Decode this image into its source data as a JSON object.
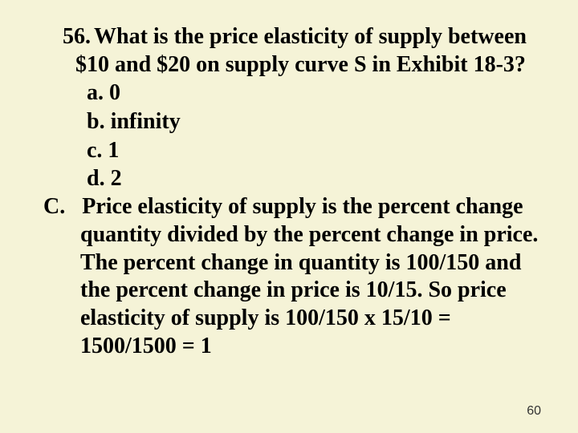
{
  "slide": {
    "background_color": "#f5f3d7",
    "text_color": "#000000",
    "font_family": "Times New Roman",
    "font_size_pt": 21,
    "font_weight": "bold",
    "question": {
      "number": "56.",
      "text": "What is the price elasticity of supply between $10 and $20 on supply curve S in Exhibit 18-3?"
    },
    "options": {
      "a": "a. 0",
      "b": "b. infinity",
      "c": "c. 1",
      "d": "d. 2"
    },
    "answer": {
      "letter": "C.",
      "text": "Price elasticity of supply is the percent change quantity divided by the percent change in price. The percent change in quantity is 100/150 and the percent change in price is 10/15. So price elasticity of supply is 100/150 x 15/10 = 1500/1500 = 1"
    },
    "page_number": "60"
  }
}
